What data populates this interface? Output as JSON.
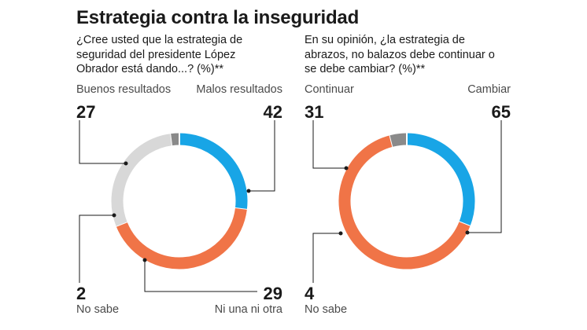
{
  "title": "Estrategia contra la inseguridad",
  "chart_data": [
    {
      "type": "pie",
      "title": "¿Cree usted que la estrategia de seguridad del presidente López Obrador está dando...? (%)**",
      "unit": "%",
      "slices": [
        {
          "label": "Buenos resultados",
          "value": 27,
          "color": "#18a5e6"
        },
        {
          "label": "Malos resultados",
          "value": 42,
          "color": "#f07447"
        },
        {
          "label": "Ni una ni otra",
          "value": 29,
          "color": "#d8d8d8"
        },
        {
          "label": "No sabe",
          "value": 2,
          "color": "#8a8a8a"
        }
      ]
    },
    {
      "type": "pie",
      "title": "En su opinión, ¿la estrategia de abrazos, no balazos debe continuar o se debe cambiar? (%)**",
      "unit": "%",
      "slices": [
        {
          "label": "Continuar",
          "value": 31,
          "color": "#18a5e6"
        },
        {
          "label": "Cambiar",
          "value": 65,
          "color": "#f07447"
        },
        {
          "label": "No sabe",
          "value": 4,
          "color": "#8a8a8a"
        }
      ]
    }
  ]
}
